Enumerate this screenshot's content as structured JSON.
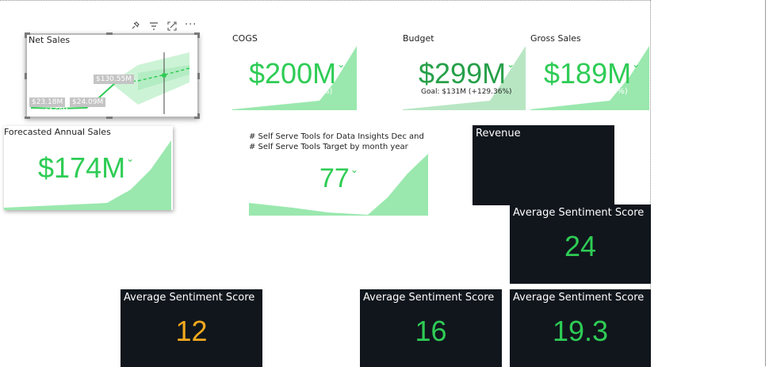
{
  "net_sales": {
    "title": "Net Sales",
    "labels": [
      "$130.55M",
      "$23.18M",
      "$24.09M",
      "$4.69M"
    ],
    "header_icons": [
      "pin-icon",
      "filter-icon",
      "focus-mode-icon",
      "more-options-icon"
    ]
  },
  "cogs": {
    "title": "COGS",
    "value": "$200M",
    "partial": "%)"
  },
  "budget": {
    "title": "Budget",
    "value": "$299M",
    "goal": "Goal: $131M (+129.36%)"
  },
  "gross_sales": {
    "title": "Gross Sales",
    "value": "$189M",
    "partial": "3%)"
  },
  "forecast": {
    "title": "Forecasted Annual Sales",
    "value": "$174M",
    "partial": ")"
  },
  "self_serve": {
    "title": "# Self Serve Tools for Data Insights Dec and # Self Serve Tools Target by month year",
    "value": "77"
  },
  "revenue": {
    "title": "Revenue"
  },
  "sentiment": [
    {
      "title": "Average Sentiment Score",
      "value": "24",
      "color": "#2ecc55"
    },
    {
      "title": "Average Sentiment Score",
      "value": "12",
      "color": "#f2a81d"
    },
    {
      "title": "Average Sentiment Score",
      "value": "16",
      "color": "#2ecc55"
    },
    {
      "title": "Average Sentiment Score",
      "value": "19.3",
      "color": "#2ecc55"
    }
  ],
  "colors": {
    "accent_green": "#2ecc55",
    "area_green": "#9ae8ae",
    "dark_bg": "#11161d",
    "orange": "#f2a81d"
  }
}
